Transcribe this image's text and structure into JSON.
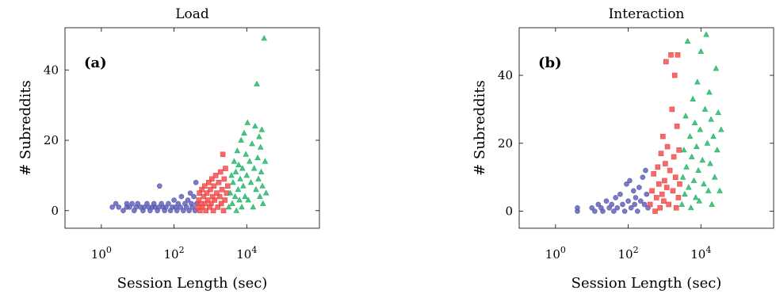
{
  "chart_data": [
    {
      "type": "scatter",
      "title": "Load",
      "panel_label": "(a)",
      "xlabel": "Session Length (sec)",
      "ylabel": "# Subreddits",
      "x_scale": "log",
      "xlim": [
        0.1,
        1000000
      ],
      "ylim": [
        -5,
        52
      ],
      "x_ticks": [
        {
          "value": 1,
          "base": "10",
          "exp": "0"
        },
        {
          "value": 100,
          "base": "10",
          "exp": "2"
        },
        {
          "value": 10000,
          "base": "10",
          "exp": "4"
        }
      ],
      "y_ticks": [
        {
          "value": 0,
          "label": "0"
        },
        {
          "value": 20,
          "label": "20"
        },
        {
          "value": 40,
          "label": "40"
        }
      ],
      "grid": false,
      "series": [
        {
          "color": "#5a5ab4",
          "marker": "circle",
          "points": [
            [
              2,
              1
            ],
            [
              2.5,
              2
            ],
            [
              3,
              1
            ],
            [
              4,
              0
            ],
            [
              5,
              2
            ],
            [
              5,
              1
            ],
            [
              6,
              1
            ],
            [
              7,
              2
            ],
            [
              8,
              0
            ],
            [
              9,
              1
            ],
            [
              10,
              2
            ],
            [
              12,
              1
            ],
            [
              14,
              0
            ],
            [
              15,
              1
            ],
            [
              18,
              2
            ],
            [
              20,
              1
            ],
            [
              22,
              0
            ],
            [
              25,
              1
            ],
            [
              28,
              2
            ],
            [
              30,
              1
            ],
            [
              35,
              0
            ],
            [
              38,
              1
            ],
            [
              40,
              7
            ],
            [
              45,
              2
            ],
            [
              50,
              1
            ],
            [
              55,
              0
            ],
            [
              60,
              1
            ],
            [
              70,
              2
            ],
            [
              80,
              0
            ],
            [
              90,
              1
            ],
            [
              100,
              3
            ],
            [
              110,
              1
            ],
            [
              120,
              0
            ],
            [
              130,
              2
            ],
            [
              150,
              1
            ],
            [
              160,
              4
            ],
            [
              180,
              0
            ],
            [
              200,
              2
            ],
            [
              220,
              1
            ],
            [
              240,
              3
            ],
            [
              260,
              0
            ],
            [
              280,
              5
            ],
            [
              300,
              2
            ],
            [
              320,
              1
            ],
            [
              350,
              4
            ],
            [
              380,
              0
            ],
            [
              400,
              8
            ],
            [
              420,
              2
            ]
          ]
        },
        {
          "color": "#f04646",
          "marker": "square",
          "points": [
            [
              450,
              1
            ],
            [
              480,
              3
            ],
            [
              500,
              5
            ],
            [
              520,
              0
            ],
            [
              550,
              2
            ],
            [
              580,
              6
            ],
            [
              600,
              1
            ],
            [
              650,
              4
            ],
            [
              700,
              7
            ],
            [
              720,
              2
            ],
            [
              750,
              0
            ],
            [
              800,
              5
            ],
            [
              850,
              3
            ],
            [
              900,
              8
            ],
            [
              950,
              1
            ],
            [
              1000,
              6
            ],
            [
              1050,
              2
            ],
            [
              1100,
              9
            ],
            [
              1150,
              4
            ],
            [
              1200,
              0
            ],
            [
              1250,
              7
            ],
            [
              1300,
              3
            ],
            [
              1400,
              10
            ],
            [
              1500,
              5
            ],
            [
              1600,
              1
            ],
            [
              1700,
              8
            ],
            [
              1800,
              4
            ],
            [
              1900,
              11
            ],
            [
              2000,
              2
            ],
            [
              2100,
              6
            ],
            [
              2200,
              16
            ],
            [
              2300,
              0
            ],
            [
              2400,
              9
            ],
            [
              2500,
              3
            ],
            [
              2600,
              12
            ],
            [
              2800,
              5
            ],
            [
              3000,
              7
            ]
          ]
        },
        {
          "color": "#1eb464",
          "marker": "triangle",
          "points": [
            [
              3200,
              1
            ],
            [
              3500,
              5
            ],
            [
              3800,
              10
            ],
            [
              4000,
              2
            ],
            [
              4200,
              8
            ],
            [
              4500,
              14
            ],
            [
              4800,
              4
            ],
            [
              5000,
              11
            ],
            [
              5200,
              0
            ],
            [
              5500,
              17
            ],
            [
              5800,
              6
            ],
            [
              6000,
              13
            ],
            [
              6300,
              3
            ],
            [
              6600,
              9
            ],
            [
              7000,
              20
            ],
            [
              7300,
              1
            ],
            [
              7600,
              12
            ],
            [
              8000,
              7
            ],
            [
              8500,
              22
            ],
            [
              9000,
              4
            ],
            [
              9500,
              16
            ],
            [
              10000,
              10
            ],
            [
              10500,
              25
            ],
            [
              11000,
              3
            ],
            [
              12000,
              14
            ],
            [
              13000,
              8
            ],
            [
              14000,
              19
            ],
            [
              15000,
              1
            ],
            [
              16000,
              12
            ],
            [
              17000,
              24
            ],
            [
              18000,
              6
            ],
            [
              19000,
              36
            ],
            [
              20000,
              15
            ],
            [
              21000,
              9
            ],
            [
              22000,
              21
            ],
            [
              23000,
              4
            ],
            [
              24000,
              18
            ],
            [
              25000,
              11
            ],
            [
              26000,
              23
            ],
            [
              27000,
              7
            ],
            [
              28000,
              2
            ],
            [
              30000,
              49
            ],
            [
              32000,
              14
            ],
            [
              34000,
              5
            ]
          ]
        }
      ]
    },
    {
      "type": "scatter",
      "title": "Interaction",
      "panel_label": "(b)",
      "xlabel": "Session Length (sec)",
      "ylabel": "# Subreddits",
      "x_scale": "log",
      "xlim": [
        0.1,
        1000000
      ],
      "ylim": [
        -5,
        54
      ],
      "x_ticks": [
        {
          "value": 1,
          "base": "10",
          "exp": "0"
        },
        {
          "value": 100,
          "base": "10",
          "exp": "2"
        },
        {
          "value": 10000,
          "base": "10",
          "exp": "4"
        }
      ],
      "y_ticks": [
        {
          "value": 0,
          "label": "0"
        },
        {
          "value": 20,
          "label": "20"
        },
        {
          "value": 40,
          "label": "40"
        }
      ],
      "grid": false,
      "series": [
        {
          "color": "#5a5ab4",
          "marker": "circle",
          "points": [
            [
              4,
              0
            ],
            [
              4,
              1
            ],
            [
              10,
              1
            ],
            [
              12,
              0
            ],
            [
              15,
              2
            ],
            [
              18,
              1
            ],
            [
              20,
              0
            ],
            [
              25,
              3
            ],
            [
              30,
              1
            ],
            [
              35,
              2
            ],
            [
              40,
              0
            ],
            [
              45,
              4
            ],
            [
              50,
              1
            ],
            [
              60,
              5
            ],
            [
              70,
              2
            ],
            [
              80,
              0
            ],
            [
              90,
              8
            ],
            [
              100,
              3
            ],
            [
              110,
              9
            ],
            [
              120,
              1
            ],
            [
              140,
              6
            ],
            [
              150,
              2
            ],
            [
              160,
              4
            ],
            [
              180,
              0
            ],
            [
              200,
              7
            ],
            [
              220,
              3
            ],
            [
              250,
              10
            ],
            [
              280,
              2
            ],
            [
              300,
              12
            ],
            [
              320,
              5
            ],
            [
              350,
              1
            ]
          ]
        },
        {
          "color": "#f04646",
          "marker": "square",
          "points": [
            [
              400,
              2
            ],
            [
              450,
              6
            ],
            [
              500,
              11
            ],
            [
              550,
              0
            ],
            [
              600,
              4
            ],
            [
              650,
              13
            ],
            [
              700,
              8
            ],
            [
              750,
              1
            ],
            [
              800,
              17
            ],
            [
              850,
              5
            ],
            [
              900,
              22
            ],
            [
              950,
              3
            ],
            [
              1000,
              9
            ],
            [
              1050,
              14
            ],
            [
              1100,
              44
            ],
            [
              1150,
              7
            ],
            [
              1200,
              19
            ],
            [
              1300,
              2
            ],
            [
              1400,
              12
            ],
            [
              1500,
              46
            ],
            [
              1600,
              30
            ],
            [
              1700,
              6
            ],
            [
              1800,
              16
            ],
            [
              1900,
              40
            ],
            [
              2000,
              10
            ],
            [
              2100,
              1
            ],
            [
              2200,
              25
            ],
            [
              2300,
              46
            ],
            [
              2400,
              4
            ],
            [
              2500,
              18
            ],
            [
              2600,
              8
            ]
          ]
        },
        {
          "color": "#1eb464",
          "marker": "triangle",
          "points": [
            [
              3000,
              2
            ],
            [
              3200,
              10
            ],
            [
              3400,
              18
            ],
            [
              3600,
              5
            ],
            [
              3800,
              28
            ],
            [
              4000,
              13
            ],
            [
              4300,
              50
            ],
            [
              4600,
              7
            ],
            [
              5000,
              22
            ],
            [
              5300,
              1
            ],
            [
              5600,
              16
            ],
            [
              6000,
              33
            ],
            [
              6400,
              9
            ],
            [
              6800,
              26
            ],
            [
              7200,
              4
            ],
            [
              7600,
              19
            ],
            [
              8000,
              38
            ],
            [
              8500,
              12
            ],
            [
              9000,
              3
            ],
            [
              9500,
              24
            ],
            [
              10000,
              47
            ],
            [
              11000,
              15
            ],
            [
              12000,
              8
            ],
            [
              13000,
              30
            ],
            [
              14000,
              52
            ],
            [
              15000,
              20
            ],
            [
              16000,
              6
            ],
            [
              17000,
              35
            ],
            [
              18000,
              14
            ],
            [
              19000,
              27
            ],
            [
              20000,
              2
            ],
            [
              22000,
              22
            ],
            [
              24000,
              10
            ],
            [
              26000,
              42
            ],
            [
              28000,
              18
            ],
            [
              30000,
              29
            ],
            [
              33000,
              6
            ],
            [
              36000,
              24
            ]
          ]
        }
      ]
    }
  ]
}
